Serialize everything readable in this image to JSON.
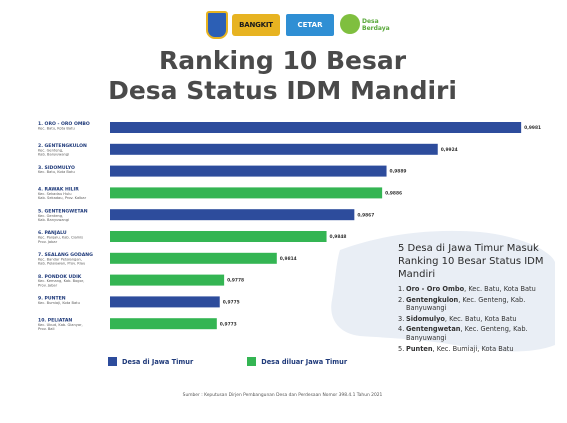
{
  "logos": {
    "crest": "",
    "bangkit": "BANGKIT",
    "cetar": "CETAR",
    "desa": "Desa Berdaya"
  },
  "title": {
    "line1": "Ranking 10 Besar",
    "line2": "Desa Status IDM Mandiri"
  },
  "colors": {
    "jawa_timur": "#2d4c9c",
    "luar_jawa_timur": "#34b553",
    "title": "#4a4a4a",
    "map": "#e9eef5"
  },
  "chart_data": {
    "type": "bar",
    "orientation": "horizontal",
    "categories": [
      "1. ORO - ORO OMBO",
      "2. GENTENGKULON",
      "3. SIDOMULYO",
      "4. RAWAK HILIR",
      "5. GENTENGWETAN",
      "6. PANJALU",
      "7. SEALANG GODANG",
      "8. PONDOK UDIK",
      "9. PUNTEN",
      "10. PELIATAN"
    ],
    "sublabels": [
      [
        "Kec. Batu, Kota Batu"
      ],
      [
        "Kec. Genteng,",
        "Kab. Banyuwangi"
      ],
      [
        "Kec. Batu, Kota Batu"
      ],
      [
        "Kec. Sekadau Hulu",
        "Kab. Sekadau, Prov. Kalbar"
      ],
      [
        "Kec. Genteng,",
        "Kab. Banyuwangi"
      ],
      [
        "Kec. Panjalu, Kab. Ciamis",
        "Prov. Jabar"
      ],
      [
        "Kec. Bandar Petalangan,",
        "Kab. Pelalawan, Prov. Riau"
      ],
      [
        "Kec. Kemang, Kab. Bogor,",
        "Prov. Jabar"
      ],
      [
        "Kec. Bumiaji, Kota Batu"
      ],
      [
        "Kec. Ubud, Kab. Gianyar,",
        "Prov. Bali"
      ]
    ],
    "values": [
      0.9981,
      0.9924,
      0.9889,
      0.9886,
      0.9867,
      0.9848,
      0.9814,
      0.9778,
      0.9775,
      0.9773
    ],
    "value_labels": [
      "0,9981",
      "0,9924",
      "0,9889",
      "0,9886",
      "0,9867",
      "0,9848",
      "0,9814",
      "0,9778",
      "0,9775",
      "0,9773"
    ],
    "group": [
      "jawa_timur",
      "jawa_timur",
      "jawa_timur",
      "luar_jawa_timur",
      "jawa_timur",
      "luar_jawa_timur",
      "luar_jawa_timur",
      "luar_jawa_timur",
      "jawa_timur",
      "luar_jawa_timur"
    ],
    "xlim": [
      0.97,
      0.9985
    ],
    "grid": false,
    "legend_position": "bottom"
  },
  "legend": {
    "jawa_timur": "Desa di Jawa Timur",
    "luar_jawa_timur": "Desa diluar Jawa Timur"
  },
  "panel": {
    "title": "5 Desa di Jawa Timur Masuk Ranking 10 Besar Status IDM Mandiri",
    "items": [
      {
        "n": "1.",
        "name": "Oro - Oro Ombo",
        "rest": ", Kec. Batu, Kota Batu"
      },
      {
        "n": "2.",
        "name": "Gentengkulon",
        "rest": ", Kec. Genteng, Kab. Banyuwangi"
      },
      {
        "n": "3.",
        "name": "Sidomulyo",
        "rest": ", Kec. Batu, Kota Batu"
      },
      {
        "n": "4.",
        "name": "Gentengwetan",
        "rest": ", Kec. Genteng, Kab. Banyuwangi"
      },
      {
        "n": "5.",
        "name": "Punten",
        "rest": ", Kec. Bumiaji, Kota Batu"
      }
    ]
  },
  "source": "Sumber : Keputusan Dirjen Pembangunan Desa dan Perdesaan Nomor 398.4.1 Tahun 2021"
}
